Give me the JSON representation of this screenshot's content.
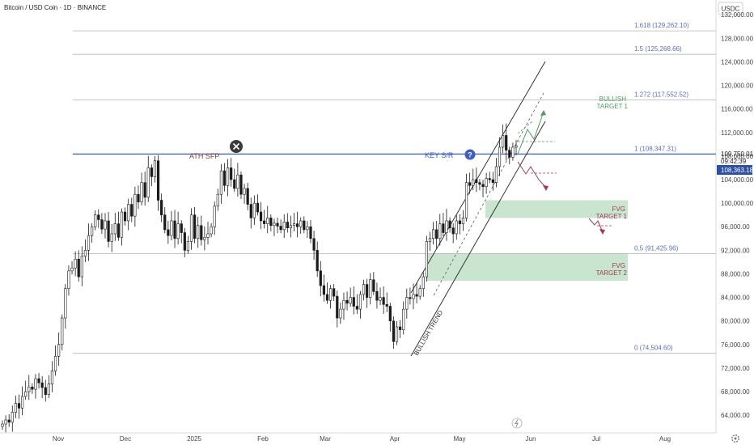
{
  "header": {
    "symbol_title": "Bitcoin / USD Coin · 1D · BINANCE"
  },
  "price_scale": {
    "currency": "USDC"
  },
  "colors": {
    "up": "#26a69a",
    "down": "#111111",
    "candle": "#1a1a1a",
    "key_line": "#3f5fbf",
    "zone": "#9ccfa8",
    "fib_line": "#b4b4b4",
    "fib_text": "#5b6fb5",
    "green_ann": "#4f9a62",
    "red_ann": "#9e3b55",
    "axis_text": "#444444",
    "current_badge": "#2f4f9f"
  },
  "badges": {
    "last_price": "109,750.01",
    "countdown": "09:42:39",
    "current_level": "108,363.18"
  },
  "annotations": {
    "ath_sfp": "ATH SFP",
    "key_sr": "KEY S/R",
    "bullish_target_line1": "BULLISH",
    "bullish_target_line2": "TARGET 1",
    "fvg_target1_line1": "FVG",
    "fvg_target1_line2": "TARGET 1",
    "fvg_target2_line1": "FVG",
    "fvg_target2_line2": "TARGET 2",
    "bullish_trend": "BULLISH TREND"
  },
  "icons": {
    "close_marker": "x-circle-icon",
    "help_marker": "question-circle-icon",
    "settings": "gear-icon"
  },
  "chart_data": {
    "type": "candlestick",
    "y_ticks": [
      64000,
      68000,
      72000,
      76000,
      80000,
      84000,
      88000,
      92000,
      96000,
      100000,
      104000,
      108000,
      112000,
      116000,
      120000,
      124000,
      128000,
      132000
    ],
    "y_tick_labels": [
      "64,000.00",
      "68,000.00",
      "72,000.00",
      "76,000.00",
      "80,000.00",
      "84,000.00",
      "88,000.00",
      "92,000.00",
      "96,000.00",
      "100,000.00",
      "104,000.00",
      "108,000.00",
      "112,000.00",
      "116,000.00",
      "120,000.00",
      "124,000.00",
      "128,000.00",
      "132,000.00"
    ],
    "ylim": [
      61000,
      134500
    ],
    "x_ticks": [
      "Nov",
      "Dec",
      "2025",
      "Feb",
      "Mar",
      "Apr",
      "May",
      "Jun",
      "Jul",
      "Aug"
    ],
    "fib_levels": [
      {
        "ratio": "1.618",
        "value": 129262.1,
        "label": "1.618 (129,262.10)"
      },
      {
        "ratio": "1.5",
        "value": 125268.66,
        "label": "1.5 (125,268.66)"
      },
      {
        "ratio": "1.272",
        "value": 117552.52,
        "label": "1.272 (117,552.52)"
      },
      {
        "ratio": "1",
        "value": 108347.31,
        "label": "1 (108,347.31)"
      },
      {
        "ratio": "0.5",
        "value": 91425.96,
        "label": "0.5 (91,425.96)"
      },
      {
        "ratio": "0",
        "value": 74504.6,
        "label": "0 (74,504.60)"
      }
    ],
    "key_sr_level": 108347.31,
    "zones": [
      {
        "name": "FVG TARGET 1",
        "low": 97500,
        "high": 100500
      },
      {
        "name": "FVG TARGET 2",
        "low": 86800,
        "high": 91500
      }
    ],
    "closes": [
      62500,
      63200,
      62800,
      64500,
      66000,
      65200,
      67200,
      68000,
      68800,
      68400,
      70200,
      69500,
      68700,
      67500,
      69300,
      71500,
      74000,
      76000,
      80500,
      85500,
      88500,
      89000,
      90500,
      87500,
      91000,
      92000,
      94500,
      96000,
      98000,
      97200,
      95600,
      97000,
      93500,
      94800,
      96500,
      94200,
      98500,
      97000,
      99800,
      97800,
      101500,
      100200,
      103500,
      101000,
      106000,
      104500,
      107200,
      100500,
      98000,
      95500,
      94500,
      97000,
      94000,
      96500,
      95000,
      92000,
      93500,
      98000,
      94000,
      96200,
      93800,
      94200,
      94800,
      96000,
      99500,
      101500,
      105500,
      103000,
      106000,
      104000,
      102500,
      104800,
      101500,
      102500,
      99800,
      97500,
      100000,
      98500,
      97000,
      96500,
      97500,
      96200,
      96600,
      96100,
      95500,
      96800,
      95800,
      96200,
      96500,
      96000,
      97000,
      95500,
      96000,
      94000,
      92000,
      88500,
      86000,
      84500,
      83500,
      85500,
      84200,
      80500,
      82000,
      83500,
      83000,
      84000,
      82500,
      82000,
      84500,
      86200,
      84000,
      87000,
      85000,
      83500,
      84000,
      82800,
      82500,
      80000,
      76500,
      79000,
      78500,
      82000,
      84000,
      83800,
      84500,
      84200,
      85500,
      87500,
      93500,
      94000,
      95500,
      94000,
      96500,
      95000,
      97000,
      95800,
      94800,
      97000,
      96500,
      97500,
      103500,
      103000,
      104000,
      103500,
      103200,
      102800,
      104200,
      104000,
      103500,
      106200,
      109500,
      111500,
      109000,
      107800,
      109500,
      109750
    ]
  }
}
